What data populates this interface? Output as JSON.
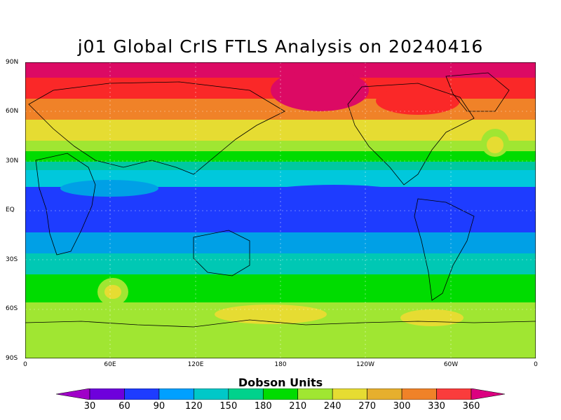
{
  "title": "j01 Global CrIS FTLS Analysis on 20240416",
  "map": {
    "lat_ticks": [
      "90N",
      "60N",
      "30N",
      "EQ",
      "30S",
      "60S",
      "90S"
    ],
    "lon_ticks": [
      "0",
      "60E",
      "120E",
      "180",
      "120W",
      "60W",
      "0"
    ],
    "variable": "Dobson Units"
  },
  "colorbar": {
    "title": "Dobson Units",
    "labels": [
      "30",
      "60",
      "90",
      "120",
      "150",
      "180",
      "210",
      "240",
      "270",
      "300",
      "330",
      "360"
    ],
    "colors": [
      "#a000c8",
      "#6e00dc",
      "#1e3cff",
      "#00a0ff",
      "#00c8c8",
      "#00d28c",
      "#00dc00",
      "#a0e632",
      "#e6dc32",
      "#e6af2d",
      "#f08228",
      "#fa3c3c",
      "#dc0080"
    ]
  }
}
